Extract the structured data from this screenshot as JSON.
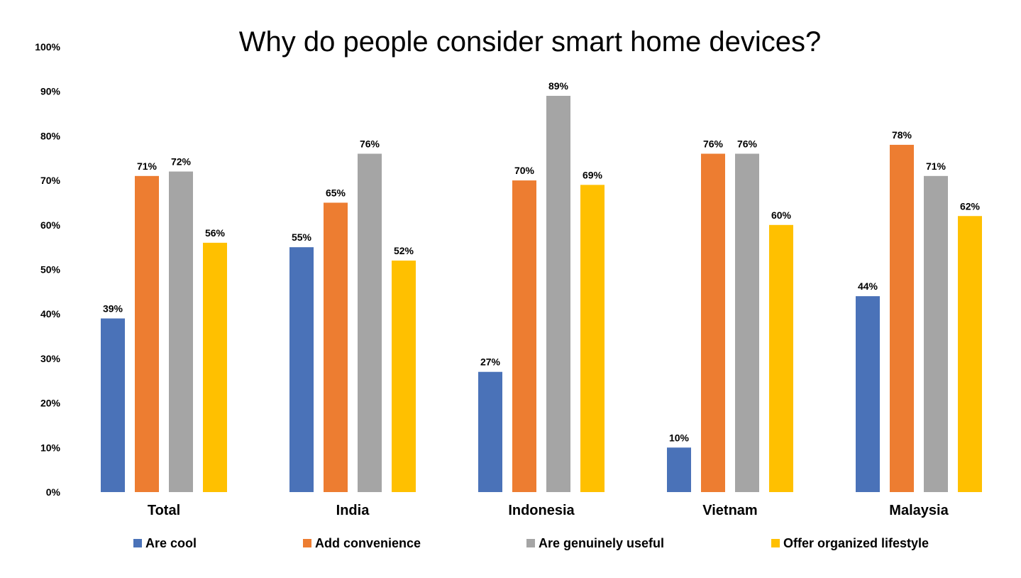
{
  "chart_data": {
    "type": "bar",
    "title": "Why do people consider smart home devices?",
    "xlabel": "",
    "ylabel": "",
    "ylim": [
      0,
      100
    ],
    "y_ticks": [
      "0%",
      "10%",
      "20%",
      "30%",
      "40%",
      "50%",
      "60%",
      "70%",
      "80%",
      "90%",
      "100%"
    ],
    "categories": [
      "Total",
      "India",
      "Indonesia",
      "Vietnam",
      "Malaysia"
    ],
    "series": [
      {
        "name": "Are cool",
        "color": "#4a72b8",
        "values": [
          39,
          55,
          27,
          10,
          44
        ],
        "labels": [
          "39%",
          "55%",
          "27%",
          "10%",
          "44%"
        ]
      },
      {
        "name": "Add convenience",
        "color": "#ed7d31",
        "values": [
          71,
          65,
          70,
          76,
          78
        ],
        "labels": [
          "71%",
          "65%",
          "70%",
          "76%",
          "78%"
        ]
      },
      {
        "name": "Are genuinely useful",
        "color": "#a5a5a5",
        "values": [
          72,
          76,
          89,
          76,
          71
        ],
        "labels": [
          "72%",
          "76%",
          "89%",
          "76%",
          "71%"
        ]
      },
      {
        "name": "Offer organized lifestyle",
        "color": "#ffc000",
        "values": [
          56,
          52,
          69,
          60,
          62
        ],
        "labels": [
          "56%",
          "52%",
          "69%",
          "60%",
          "62%"
        ]
      }
    ],
    "grid": false,
    "legend_position": "bottom"
  }
}
